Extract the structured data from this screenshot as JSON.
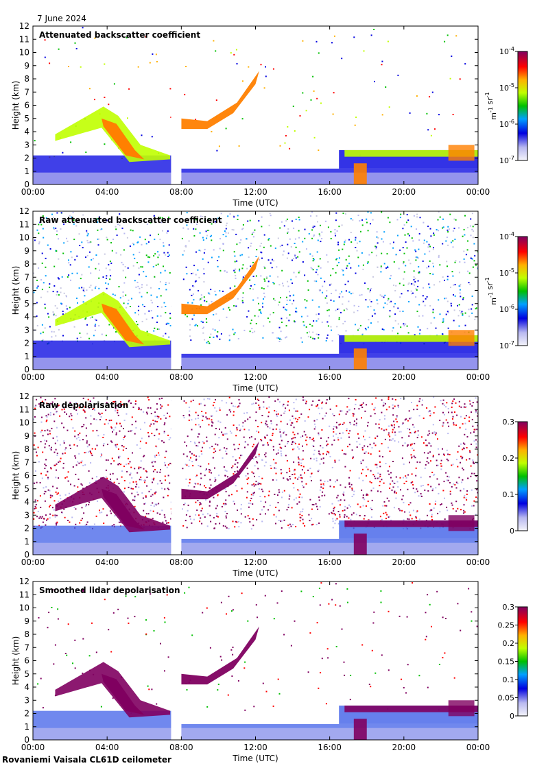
{
  "header": {
    "date": "7 June 2024"
  },
  "footer": {
    "station": "Rovaniemi Vaisala CL61D ceilometer"
  },
  "chart_data": [
    {
      "type": "heatmap",
      "title": "Attenuated backscatter coefficient",
      "xlabel": "Time (UTC)",
      "ylabel": "Height (km)",
      "xticks": [
        "00:00",
        "04:00",
        "08:00",
        "12:00",
        "16:00",
        "20:00",
        "00:00"
      ],
      "yticks": [
        "0",
        "1",
        "2",
        "3",
        "4",
        "5",
        "6",
        "7",
        "8",
        "9",
        "10",
        "11",
        "12"
      ],
      "ylim": [
        0,
        12
      ],
      "xlim_hours": [
        0,
        24
      ],
      "data_gap_hours": [
        7.45,
        8.0
      ],
      "colorbar": {
        "scale": "log",
        "ticks": [
          "10-7",
          "10-6",
          "10-5",
          "10-4"
        ],
        "unit": "m-1 sr-1",
        "colormap": "rainbow-on-white"
      },
      "features": [
        {
          "name": "boundary-layer-aerosol",
          "hours": [
            0,
            24
          ],
          "height_km": [
            0,
            2.4
          ]
        },
        {
          "name": "cloud-layer-morning",
          "hours": [
            0,
            7.4
          ],
          "height_km": [
            1.8,
            6.0
          ]
        },
        {
          "name": "rising-cloud-layer",
          "hours": [
            8.0,
            12.3
          ],
          "height_km": [
            4.2,
            8.6
          ]
        },
        {
          "name": "low-cloud-afternoon",
          "hours": [
            16.5,
            24
          ],
          "height_km": [
            1.5,
            3.2
          ]
        }
      ]
    },
    {
      "type": "heatmap",
      "title": "Raw attenuated backscatter coefficient",
      "xlabel": "Time (UTC)",
      "ylabel": "Height (km)",
      "xticks": [
        "00:00",
        "04:00",
        "08:00",
        "12:00",
        "16:00",
        "20:00",
        "00:00"
      ],
      "yticks": [
        "0",
        "1",
        "2",
        "3",
        "4",
        "5",
        "6",
        "7",
        "8",
        "9",
        "10",
        "11",
        "12"
      ],
      "ylim": [
        0,
        12
      ],
      "xlim_hours": [
        0,
        24
      ],
      "data_gap_hours": [
        7.45,
        8.0
      ],
      "colorbar": {
        "scale": "log",
        "ticks": [
          "10-7",
          "10-6",
          "10-5",
          "10-4"
        ],
        "unit": "m-1 sr-1",
        "colormap": "rainbow-on-white"
      }
    },
    {
      "type": "heatmap",
      "title": "Raw depolarisation",
      "xlabel": "Time (UTC)",
      "ylabel": "Height (km)",
      "xticks": [
        "00:00",
        "04:00",
        "08:00",
        "12:00",
        "16:00",
        "20:00",
        "00:00"
      ],
      "yticks": [
        "0",
        "1",
        "2",
        "3",
        "4",
        "5",
        "6",
        "7",
        "8",
        "9",
        "10",
        "11",
        "12"
      ],
      "ylim": [
        0,
        12
      ],
      "xlim_hours": [
        0,
        24
      ],
      "data_gap_hours": [
        7.45,
        8.0
      ],
      "colorbar": {
        "scale": "linear",
        "ticks": [
          "0",
          "0.1",
          "0.2",
          "0.3"
        ],
        "range": [
          0,
          0.3
        ],
        "colormap": "rainbow-on-white"
      }
    },
    {
      "type": "heatmap",
      "title": "Smoothed lidar depolarisation",
      "xlabel": "Time (UTC)",
      "ylabel": "Height (km)",
      "xticks": [
        "00:00",
        "04:00",
        "08:00",
        "12:00",
        "16:00",
        "20:00",
        "00:00"
      ],
      "yticks": [
        "0",
        "1",
        "2",
        "3",
        "4",
        "5",
        "6",
        "7",
        "8",
        "9",
        "10",
        "11",
        "12"
      ],
      "ylim": [
        0,
        12
      ],
      "xlim_hours": [
        0,
        24
      ],
      "data_gap_hours": [
        7.45,
        8.0
      ],
      "colorbar": {
        "scale": "linear",
        "ticks": [
          "0",
          "0.05",
          "0.1",
          "0.15",
          "0.2",
          "0.25",
          "0.3"
        ],
        "range": [
          0,
          0.3
        ],
        "colormap": "rainbow-on-white"
      }
    }
  ]
}
